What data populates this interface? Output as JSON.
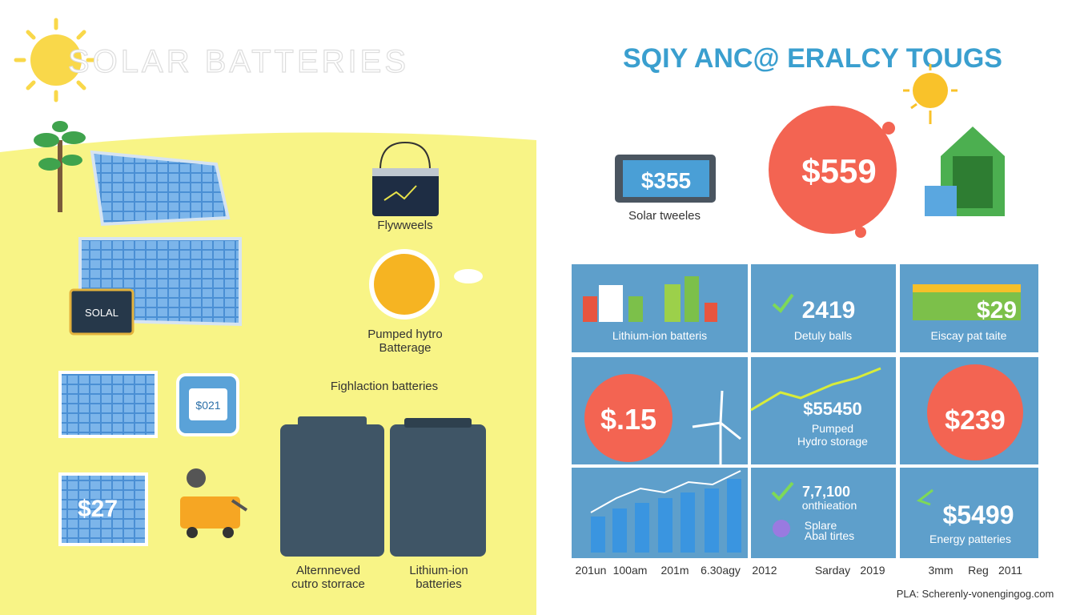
{
  "left": {
    "title": "SOLAR BATTERIES",
    "flywheels": "Flywweels",
    "solal": "SOLAL",
    "pumped": [
      "Pumped hytro",
      "Batterage"
    ],
    "fighlaction": "Fighlaction batteries",
    "device_price": "$021",
    "panel_price": "$27",
    "battery1": [
      "Alternneved",
      "cutro storrace"
    ],
    "battery2": [
      "Lithium-ion",
      "batteries"
    ]
  },
  "right": {
    "title": "SQIY ANC@ ERALCY TOUGS",
    "tablet_price": "$355",
    "tablet_label": "Solar tweeles",
    "badge_price": "$559",
    "tiles": [
      {
        "label": "Lithium-ion batteris"
      },
      {
        "value": "2419",
        "label": "Detuly balls"
      },
      {
        "value": "$29",
        "label": "Eiscay pat taite"
      },
      {
        "value": "$.15"
      },
      {
        "value": "$55450",
        "label": [
          "Pumped",
          "Hydro storage"
        ]
      },
      {
        "value": "$239"
      },
      {},
      {
        "value": "7,7,100",
        "label": [
          "onthieation",
          "Splare",
          "Abal tirtes"
        ]
      },
      {
        "value": "$5499",
        "label": "Energy patteries"
      }
    ],
    "axis_labels": [
      "201un",
      "100am",
      "201m",
      "6.30agy",
      "2012",
      "Sarday",
      "2019",
      "3mm",
      "Reg",
      "2011"
    ],
    "footer": "PLA: Scherenly-vonengingog.com"
  }
}
